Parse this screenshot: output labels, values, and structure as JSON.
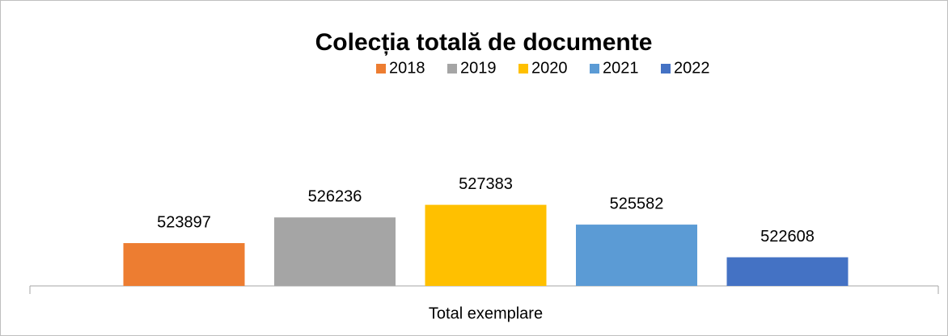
{
  "chart_data": {
    "type": "bar",
    "title": "Colecția totală de documente",
    "categories": [
      "Total exemplare"
    ],
    "series": [
      {
        "name": "2018",
        "color": "#ed7d31",
        "values": [
          523897
        ]
      },
      {
        "name": "2019",
        "color": "#a5a5a5",
        "values": [
          526236
        ]
      },
      {
        "name": "2020",
        "color": "#ffc000",
        "values": [
          527383
        ]
      },
      {
        "name": "2021",
        "color": "#5b9bd5",
        "values": [
          525582
        ]
      },
      {
        "name": "2022",
        "color": "#4472c4",
        "values": [
          522608
        ]
      }
    ],
    "ylim": [
      520000,
      530000
    ],
    "legend": "top"
  }
}
